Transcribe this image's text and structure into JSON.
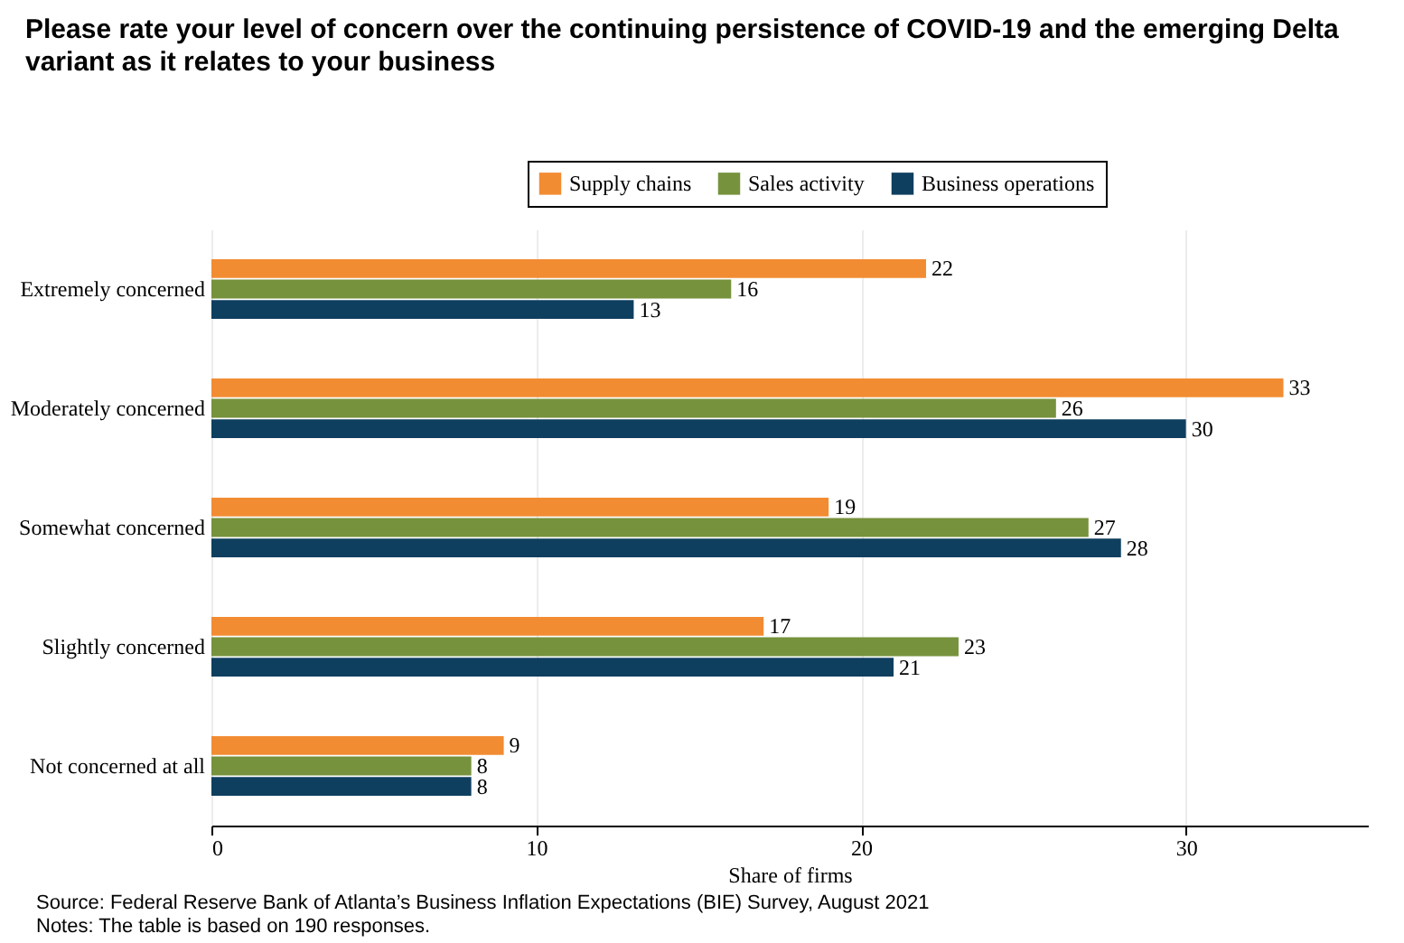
{
  "chart_data": {
    "type": "bar",
    "orientation": "horizontal",
    "title": "Please rate your level of concern over the continuing persistence of COVID-19 and the emerging Delta variant as it relates to your business",
    "xlabel": "Share of firms",
    "categories": [
      "Extremely concerned",
      "Moderately concerned",
      "Somewhat concerned",
      "Slightly concerned",
      "Not concerned at all"
    ],
    "series": [
      {
        "name": "Supply chains",
        "color": "#f28c33",
        "values": [
          22,
          33,
          19,
          17,
          9
        ]
      },
      {
        "name": "Sales activity",
        "color": "#77923c",
        "values": [
          16,
          26,
          27,
          23,
          8
        ]
      },
      {
        "name": "Business operations",
        "color": "#0f3f5f",
        "values": [
          13,
          30,
          28,
          21,
          8
        ]
      }
    ],
    "xlim": [
      0,
      35.6
    ],
    "xticks": [
      0,
      10,
      20,
      30
    ],
    "grid": "x",
    "legend": "top",
    "data_labels": true,
    "annotations": [
      "Source: Federal Reserve Bank of Atlanta’s Business Inflation Expectations (BIE) Survey, August 2021",
      "Notes: The table is based on 190 responses."
    ]
  }
}
